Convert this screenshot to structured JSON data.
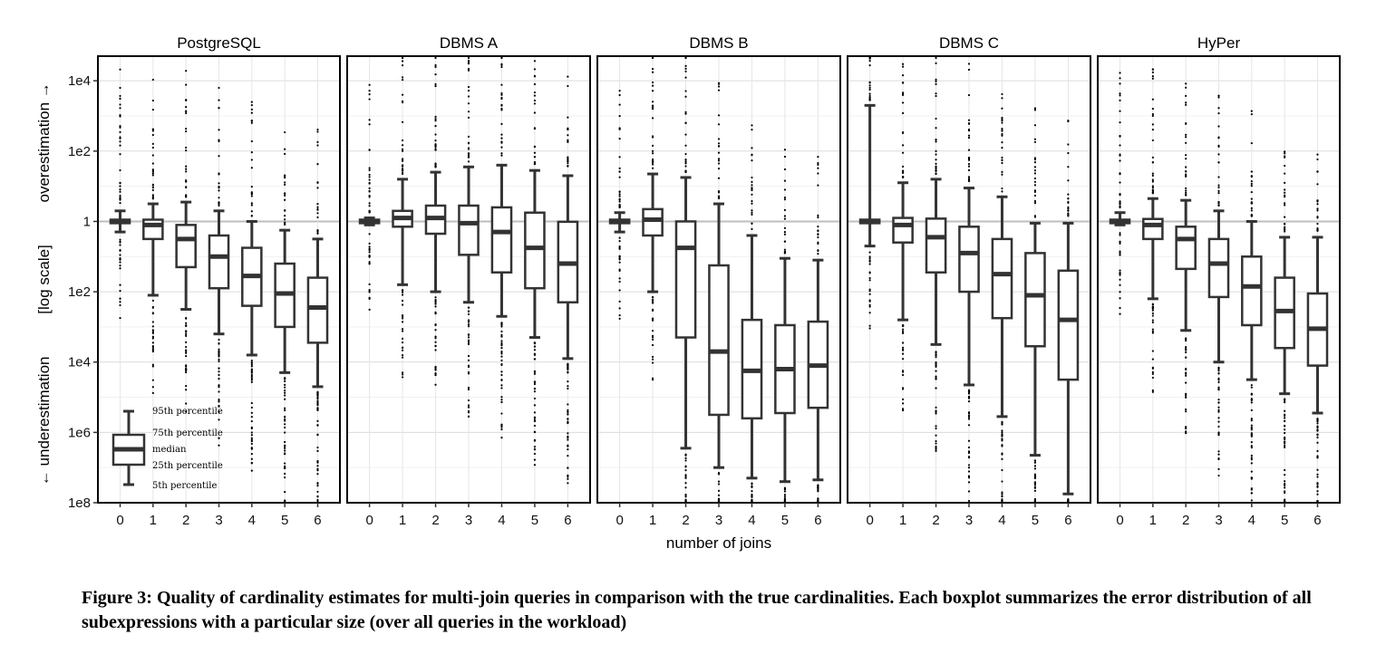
{
  "chart_data": {
    "type": "boxplot",
    "title": "",
    "xlabel": "number of joins",
    "ylabel": {
      "under": "← underestimation",
      "scale": "[log scale]",
      "over": "overestimation →"
    },
    "y_scale": "log10 (symmetric: overestimation above 1, underestimation below 1)",
    "ylim_log10": [
      -8,
      4.7
    ],
    "y_ticks": [
      {
        "label": "1e4",
        "log10": 4
      },
      {
        "label": "1e2",
        "log10": 2
      },
      {
        "label": "1",
        "log10": 0
      },
      {
        "label": "1e2",
        "log10": -2
      },
      {
        "label": "1e4",
        "log10": -4
      },
      {
        "label": "1e6",
        "log10": -6
      },
      {
        "label": "1e8",
        "log10": -8
      }
    ],
    "categories": [
      "0",
      "1",
      "2",
      "3",
      "4",
      "5",
      "6"
    ],
    "grid": true,
    "facets": [
      {
        "name": "PostgreSQL",
        "boxes": [
          {
            "joins": "0",
            "p5": -0.3,
            "q1": -0.05,
            "median": 0,
            "q3": 0.05,
            "p95": 0.3
          },
          {
            "joins": "1",
            "p5": -2.1,
            "q1": -0.5,
            "median": -0.1,
            "q3": 0.05,
            "p95": 0.5
          },
          {
            "joins": "2",
            "p5": -2.5,
            "q1": -1.3,
            "median": -0.5,
            "q3": -0.1,
            "p95": 0.55
          },
          {
            "joins": "3",
            "p5": -3.2,
            "q1": -1.9,
            "median": -1.0,
            "q3": -0.4,
            "p95": 0.3
          },
          {
            "joins": "4",
            "p5": -3.8,
            "q1": -2.4,
            "median": -1.55,
            "q3": -0.75,
            "p95": 0
          },
          {
            "joins": "5",
            "p5": -4.3,
            "q1": -3.0,
            "median": -2.05,
            "q3": -1.2,
            "p95": -0.25
          },
          {
            "joins": "6",
            "p5": -4.7,
            "q1": -3.45,
            "median": -2.45,
            "q3": -1.6,
            "p95": -0.5
          }
        ]
      },
      {
        "name": "DBMS A",
        "boxes": [
          {
            "joins": "0",
            "p5": -0.1,
            "q1": -0.05,
            "median": 0,
            "q3": 0.05,
            "p95": 0.1
          },
          {
            "joins": "1",
            "p5": -1.8,
            "q1": -0.15,
            "median": 0.1,
            "q3": 0.3,
            "p95": 1.2
          },
          {
            "joins": "2",
            "p5": -2.0,
            "q1": -0.35,
            "median": 0.1,
            "q3": 0.45,
            "p95": 1.4
          },
          {
            "joins": "3",
            "p5": -2.3,
            "q1": -0.95,
            "median": -0.05,
            "q3": 0.45,
            "p95": 1.55
          },
          {
            "joins": "4",
            "p5": -2.7,
            "q1": -1.45,
            "median": -0.3,
            "q3": 0.4,
            "p95": 1.6
          },
          {
            "joins": "5",
            "p5": -3.3,
            "q1": -1.9,
            "median": -0.75,
            "q3": 0.25,
            "p95": 1.45
          },
          {
            "joins": "6",
            "p5": -3.9,
            "q1": -2.3,
            "median": -1.2,
            "q3": -0.01,
            "p95": 1.3
          }
        ]
      },
      {
        "name": "DBMS B",
        "boxes": [
          {
            "joins": "0",
            "p5": -0.3,
            "q1": -0.05,
            "median": 0,
            "q3": 0.05,
            "p95": 0.25
          },
          {
            "joins": "1",
            "p5": -2.0,
            "q1": -0.4,
            "median": 0.05,
            "q3": 0.35,
            "p95": 1.35
          },
          {
            "joins": "2",
            "p5": -6.45,
            "q1": -3.3,
            "median": -0.75,
            "q3": 0,
            "p95": 1.25
          },
          {
            "joins": "3",
            "p5": -7.0,
            "q1": -5.5,
            "median": -3.7,
            "q3": -1.25,
            "p95": 0.5
          },
          {
            "joins": "4",
            "p5": -7.3,
            "q1": -5.6,
            "median": -4.25,
            "q3": -2.8,
            "p95": -0.4
          },
          {
            "joins": "5",
            "p5": -7.4,
            "q1": -5.45,
            "median": -4.2,
            "q3": -2.95,
            "p95": -1.05
          },
          {
            "joins": "6",
            "p5": -7.35,
            "q1": -5.3,
            "median": -4.1,
            "q3": -2.85,
            "p95": -1.1
          }
        ]
      },
      {
        "name": "DBMS C",
        "boxes": [
          {
            "joins": "0",
            "p5": -0.7,
            "q1": -0.05,
            "median": 0,
            "q3": 0.05,
            "p95": 3.3
          },
          {
            "joins": "1",
            "p5": -2.8,
            "q1": -0.6,
            "median": -0.1,
            "q3": 0.1,
            "p95": 1.1
          },
          {
            "joins": "2",
            "p5": -3.5,
            "q1": -1.45,
            "median": -0.45,
            "q3": 0.08,
            "p95": 1.2
          },
          {
            "joins": "3",
            "p5": -4.65,
            "q1": -2.0,
            "median": -0.9,
            "q3": -0.15,
            "p95": 0.95
          },
          {
            "joins": "4",
            "p5": -5.55,
            "q1": -2.75,
            "median": -1.5,
            "q3": -0.5,
            "p95": 0.7
          },
          {
            "joins": "5",
            "p5": -6.65,
            "q1": -3.55,
            "median": -2.1,
            "q3": -0.9,
            "p95": -0.05
          },
          {
            "joins": "6",
            "p5": -7.75,
            "q1": -4.5,
            "median": -2.8,
            "q3": -1.4,
            "p95": -0.05
          }
        ]
      },
      {
        "name": "HyPer",
        "boxes": [
          {
            "joins": "0",
            "p5": -0.1,
            "q1": -0.05,
            "median": 0,
            "q3": 0.05,
            "p95": 0.25
          },
          {
            "joins": "1",
            "p5": -2.2,
            "q1": -0.5,
            "median": -0.1,
            "q3": 0.07,
            "p95": 0.65
          },
          {
            "joins": "2",
            "p5": -3.1,
            "q1": -1.35,
            "median": -0.5,
            "q3": -0.15,
            "p95": 0.6
          },
          {
            "joins": "3",
            "p5": -4.0,
            "q1": -2.15,
            "median": -1.2,
            "q3": -0.5,
            "p95": 0.3
          },
          {
            "joins": "4",
            "p5": -4.5,
            "q1": -2.95,
            "median": -1.85,
            "q3": -1.0,
            "p95": 0
          },
          {
            "joins": "5",
            "p5": -4.9,
            "q1": -3.6,
            "median": -2.55,
            "q3": -1.6,
            "p95": -0.45
          },
          {
            "joins": "6",
            "p5": -5.45,
            "q1": -4.1,
            "median": -3.05,
            "q3": -2.05,
            "p95": -0.45
          }
        ]
      }
    ],
    "legend": {
      "placement": "bottom-left of first facet",
      "entries": [
        "95th percentile",
        "75th percentile",
        "median",
        "25th percentile",
        "5th percentile"
      ]
    }
  },
  "caption": "Figure 3: Quality of cardinality estimates for multi-join queries in comparison with the true cardinalities. Each boxplot summarizes the error distribution of all subexpressions with a particular size (over all queries in the workload)"
}
